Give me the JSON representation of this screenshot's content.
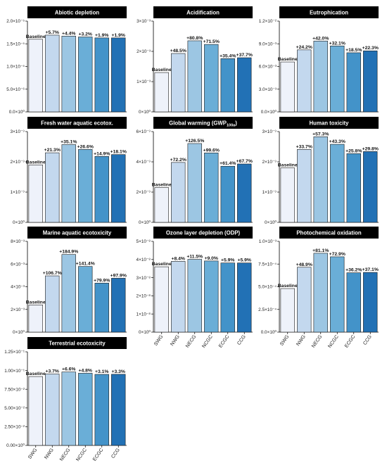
{
  "colors": [
    "#eef2fa",
    "#c3d8ee",
    "#9cc6e3",
    "#6aaed7",
    "#4393c9",
    "#2271b5"
  ],
  "categories": [
    "SWG",
    "NWG",
    "NECG",
    "NCGC",
    "ECGC",
    "CCG"
  ],
  "chart_data": [
    {
      "type": "bar",
      "title": "Abiotic depletion",
      "categories": [
        "SWG",
        "NWG",
        "NECG",
        "NCGC",
        "ECGC",
        "CCG"
      ],
      "values": [
        1.6e-05,
        1.691e-05,
        1.67e-05,
        1.651e-05,
        1.63e-05,
        1.63e-05
      ],
      "labels": [
        "Baseline",
        "+5.7%",
        "+4.4%",
        "+3.2%",
        "+1.9%",
        "+1.9%"
      ],
      "ylim": [
        0,
        2e-05
      ],
      "yticks": [
        "0.0×10⁰",
        "5.0×10⁻⁶",
        "1.0×10⁻⁵",
        "1.5×10⁻⁵",
        "2.0×10⁻⁵"
      ],
      "ytick_values": [
        0,
        5e-06,
        1e-05,
        1.5e-05,
        2e-05
      ]
    },
    {
      "type": "bar",
      "title": "Acidification",
      "categories": [
        "SWG",
        "NWG",
        "NECG",
        "NCGC",
        "ECGC",
        "CCG"
      ],
      "values": [
        0.0013,
        0.00193,
        0.00235,
        0.00223,
        0.00176,
        0.00179
      ],
      "labels": [
        "Baseline",
        "+48.5%",
        "+80.8%",
        "+71.5%",
        "+35.4%",
        "+37.7%"
      ],
      "ylim": [
        0,
        0.003
      ],
      "yticks": [
        "0×10⁰",
        "1×10⁻³",
        "2×10⁻³",
        "3×10⁻³"
      ],
      "ytick_values": [
        0,
        0.001,
        0.002,
        0.003
      ]
    },
    {
      "type": "bar",
      "title": "Eutrophication",
      "categories": [
        "SWG",
        "NWG",
        "NECG",
        "NCGC",
        "ECGC",
        "CCG"
      ],
      "values": [
        0.0066,
        0.0082,
        0.00937,
        0.00872,
        0.00782,
        0.00807
      ],
      "labels": [
        "Baseline",
        "+24.2%",
        "+42.0%",
        "+32.1%",
        "+18.5%",
        "+22.3%"
      ],
      "ylim": [
        0,
        0.012
      ],
      "yticks": [
        "0.0×10⁰",
        "3.0×10⁻³",
        "6.0×10⁻³",
        "9.0×10⁻³",
        "1.2×10⁻²"
      ],
      "ytick_values": [
        0,
        0.003,
        0.006,
        0.009,
        0.012
      ]
    },
    {
      "type": "bar",
      "title": "Fresh water aquatic ecotox.",
      "categories": [
        "SWG",
        "NWG",
        "NECG",
        "NCGC",
        "ECGC",
        "CCG"
      ],
      "values": [
        1.9e-09,
        2.3e-09,
        2.57e-09,
        2.41e-09,
        2.18e-09,
        2.24e-09
      ],
      "labels": [
        "Baseline",
        "+21.3%",
        "+35.1%",
        "+26.6%",
        "+14.9%",
        "+18.1%"
      ],
      "ylim": [
        0,
        3e-09
      ],
      "yticks": [
        "0×10⁰",
        "1×10⁻⁹",
        "2×10⁻⁹",
        "3×10⁻⁹"
      ],
      "ytick_values": [
        0,
        1e-09,
        2e-09,
        3e-09
      ]
    },
    {
      "type": "bar",
      "title": "Global warming (GWP",
      "title_sub": "100a",
      "title_end": ")",
      "categories": [
        "SWG",
        "NWG",
        "NECG",
        "NCGC",
        "ECGC",
        "CCG"
      ],
      "values": [
        2.3e-09,
        3.96e-09,
        5.21e-09,
        4.59e-09,
        3.71e-09,
        3.86e-09
      ],
      "labels": [
        "Baseline",
        "+72.2%",
        "+126.5%",
        "+99.6%",
        "+61.4%",
        "+67.7%"
      ],
      "ylim": [
        0,
        6e-09
      ],
      "yticks": [
        "0×10⁰",
        "2×10⁻⁹",
        "4×10⁻⁹",
        "6×10⁻⁹"
      ],
      "ytick_values": [
        0,
        2e-09,
        4e-09,
        6e-09
      ]
    },
    {
      "type": "bar",
      "title": "Human toxicity",
      "categories": [
        "SWG",
        "NWG",
        "NECG",
        "NCGC",
        "ECGC",
        "CCG"
      ],
      "values": [
        1.8e-09,
        2.41e-09,
        2.83e-09,
        2.58e-09,
        2.27e-09,
        2.34e-09
      ],
      "labels": [
        "Baseline",
        "+33.7%",
        "+57.3%",
        "+43.3%",
        "+25.8%",
        "+29.8%"
      ],
      "ylim": [
        0,
        3e-09
      ],
      "yticks": [
        "0×10⁰",
        "1×10⁻⁹",
        "2×10⁻⁹",
        "3×10⁻⁹"
      ],
      "ytick_values": [
        0,
        1e-09,
        2e-09,
        3e-09
      ]
    },
    {
      "type": "bar",
      "title": "Marine aquatic ecotoxicity",
      "categories": [
        "SWG",
        "NWG",
        "NECG",
        "NCGC",
        "ECGC",
        "CCG"
      ],
      "values": [
        0.0024,
        0.00496,
        0.00684,
        0.00579,
        0.00432,
        0.00475
      ],
      "labels": [
        "Baseline",
        "+106.7%",
        "+184.9%",
        "+141.4%",
        "+79.9%",
        "+97.9%"
      ],
      "ylim": [
        0,
        0.008
      ],
      "yticks": [
        "0×10⁰",
        "2×10⁻³",
        "4×10⁻³",
        "6×10⁻³",
        "8×10⁻³"
      ],
      "ytick_values": [
        0,
        0.002,
        0.004,
        0.006,
        0.008
      ]
    },
    {
      "type": "bar",
      "title": "Ozone layer depletion (ODP)",
      "categories": [
        "SWG",
        "NWG",
        "NECG",
        "NCGC",
        "ECGC",
        "CCG"
      ],
      "values": [
        3.6e-08,
        3.9e-08,
        4.01e-08,
        3.92e-08,
        3.81e-08,
        3.81e-08
      ],
      "labels": [
        "Baseline",
        "+8.4%",
        "+11.5%",
        "+9.0%",
        "+5.9%",
        "+5.9%"
      ],
      "ylim": [
        0,
        5e-08
      ],
      "yticks": [
        "0×10⁰",
        "1×10⁻⁸",
        "2×10⁻⁸",
        "3×10⁻⁸",
        "4×10⁻⁸",
        "5×10⁻⁸"
      ],
      "ytick_values": [
        0,
        1e-08,
        2e-08,
        3e-08,
        4e-08,
        5e-08
      ]
    },
    {
      "type": "bar",
      "title": "Photochemical oxidation",
      "categories": [
        "SWG",
        "NWG",
        "NECG",
        "NCGC",
        "ECGC",
        "CCG"
      ],
      "values": [
        0.00048,
        0.000715,
        0.000869,
        0.00083,
        0.000654,
        0.000658
      ],
      "labels": [
        "Baseline",
        "+48.9%",
        "+81.1%",
        "+72.9%",
        "+36.2%",
        "+37.1%"
      ],
      "ylim": [
        0,
        0.001
      ],
      "yticks": [
        "0.0×10⁰",
        "2.5×10⁻⁴",
        "5.0×10⁻⁴",
        "7.5×10⁻⁴",
        "1.0×10⁻³"
      ],
      "ytick_values": [
        0,
        0.00025,
        0.0005,
        0.00075,
        0.001
      ]
    },
    {
      "type": "bar",
      "title": "Terrestrial ecotoxicity",
      "categories": [
        "SWG",
        "NWG",
        "NECG",
        "NCGC",
        "ECGC",
        "CCG"
      ],
      "values": [
        0.092,
        0.0954,
        0.0981,
        0.0964,
        0.0949,
        0.095
      ],
      "labels": [
        "Baseline",
        "+3.7%",
        "+6.6%",
        "+4.8%",
        "+3.1%",
        "+3.3%"
      ],
      "ylim": [
        0,
        0.125
      ],
      "yticks": [
        "0.00×10⁰",
        "2.50×10⁻²",
        "5.00×10⁻²",
        "7.50×10⁻²",
        "1.00×10⁻¹",
        "1.25×10⁻¹"
      ],
      "ytick_values": [
        0,
        0.025,
        0.05,
        0.075,
        0.1,
        0.125
      ]
    }
  ]
}
